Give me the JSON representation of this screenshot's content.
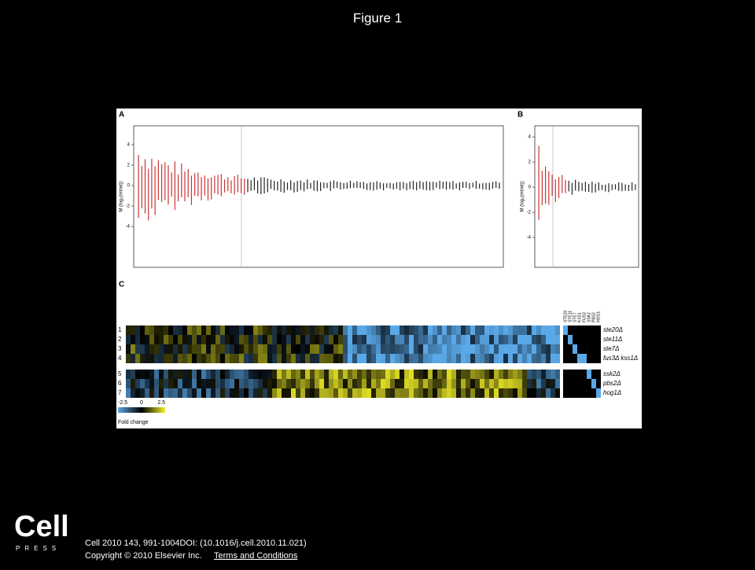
{
  "header": {
    "title": "Figure 1"
  },
  "figure": {
    "panel_a": {
      "label": "A",
      "ylabel": "M (log₂(mt/wt))",
      "yticks": [
        4,
        2,
        0,
        -2,
        -4
      ]
    },
    "panel_b": {
      "label": "B",
      "ylabel": "M (log₂(mt/wt))",
      "yticks": [
        4,
        2,
        0,
        -2,
        -4
      ]
    },
    "panel_c": {
      "label": "C",
      "row_numbers": [
        "1",
        "2",
        "3",
        "4",
        "5",
        "6",
        "7"
      ],
      "row_labels": [
        "ste20Δ",
        "ste11Δ",
        "ste7Δ",
        "fus3Δ kss1Δ",
        "ssk2Δ",
        "pbs2Δ",
        "hog1Δ"
      ],
      "kinase_columns": [
        "STE20",
        "STE11",
        "STE7",
        "KSS1",
        "FUS3",
        "SSK2",
        "PBS2",
        "HOG1"
      ],
      "legend": {
        "ticks": [
          "-2.5",
          "0",
          "2.5"
        ],
        "title": "Fold change"
      }
    }
  },
  "footer": {
    "logo": "Cell",
    "logo_sub": "PRESS",
    "citation": "Cell 2010 143, 991-1004DOI: (10.1016/j.cell.2010.11.021)",
    "copyright": "Copyright © 2010 Elsevier Inc.",
    "link": "Terms and Conditions"
  }
}
